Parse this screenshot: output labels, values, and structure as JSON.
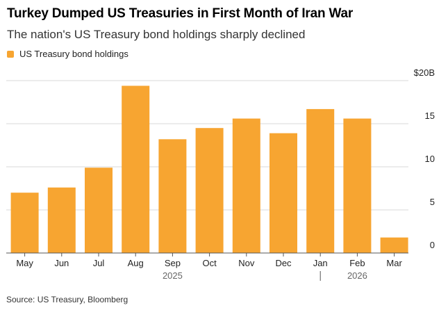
{
  "header": {
    "title": "Turkey Dumped US Treasuries in First Month of Iran War",
    "subtitle": "The nation's US Treasury bond holdings sharply declined"
  },
  "legend": {
    "label": "US Treasury bond holdings"
  },
  "footer": {
    "source": "Source: US Treasury, Bloomberg"
  },
  "colors": {
    "bar": "#f7a531",
    "grid": "#d9d9d9",
    "axis": "#555555",
    "text": "#222222"
  },
  "chart_data": {
    "type": "bar",
    "title": "Turkey Dumped US Treasuries in First Month of Iran War",
    "subtitle": "The nation's US Treasury bond holdings sharply declined",
    "categories": [
      "May",
      "Jun",
      "Jul",
      "Aug",
      "Sep",
      "Oct",
      "Nov",
      "Dec",
      "Jan",
      "Feb",
      "Mar"
    ],
    "series": [
      {
        "name": "US Treasury bond holdings",
        "values": [
          7.0,
          7.6,
          9.9,
          19.4,
          13.2,
          14.5,
          15.6,
          13.9,
          16.7,
          15.6,
          1.8
        ]
      }
    ],
    "year_labels": [
      {
        "label": "2025",
        "category": "Sep"
      },
      {
        "label": "2026",
        "category": "Feb"
      }
    ],
    "year_divider_category": "Jan",
    "ylim": [
      0,
      20
    ],
    "yticks": [
      0,
      5,
      10,
      15,
      20
    ],
    "ytick_labels": [
      "0",
      "5",
      "10",
      "15",
      "$20B"
    ],
    "y_axis_position": "right",
    "grid": true,
    "legend_position": "top-left"
  }
}
